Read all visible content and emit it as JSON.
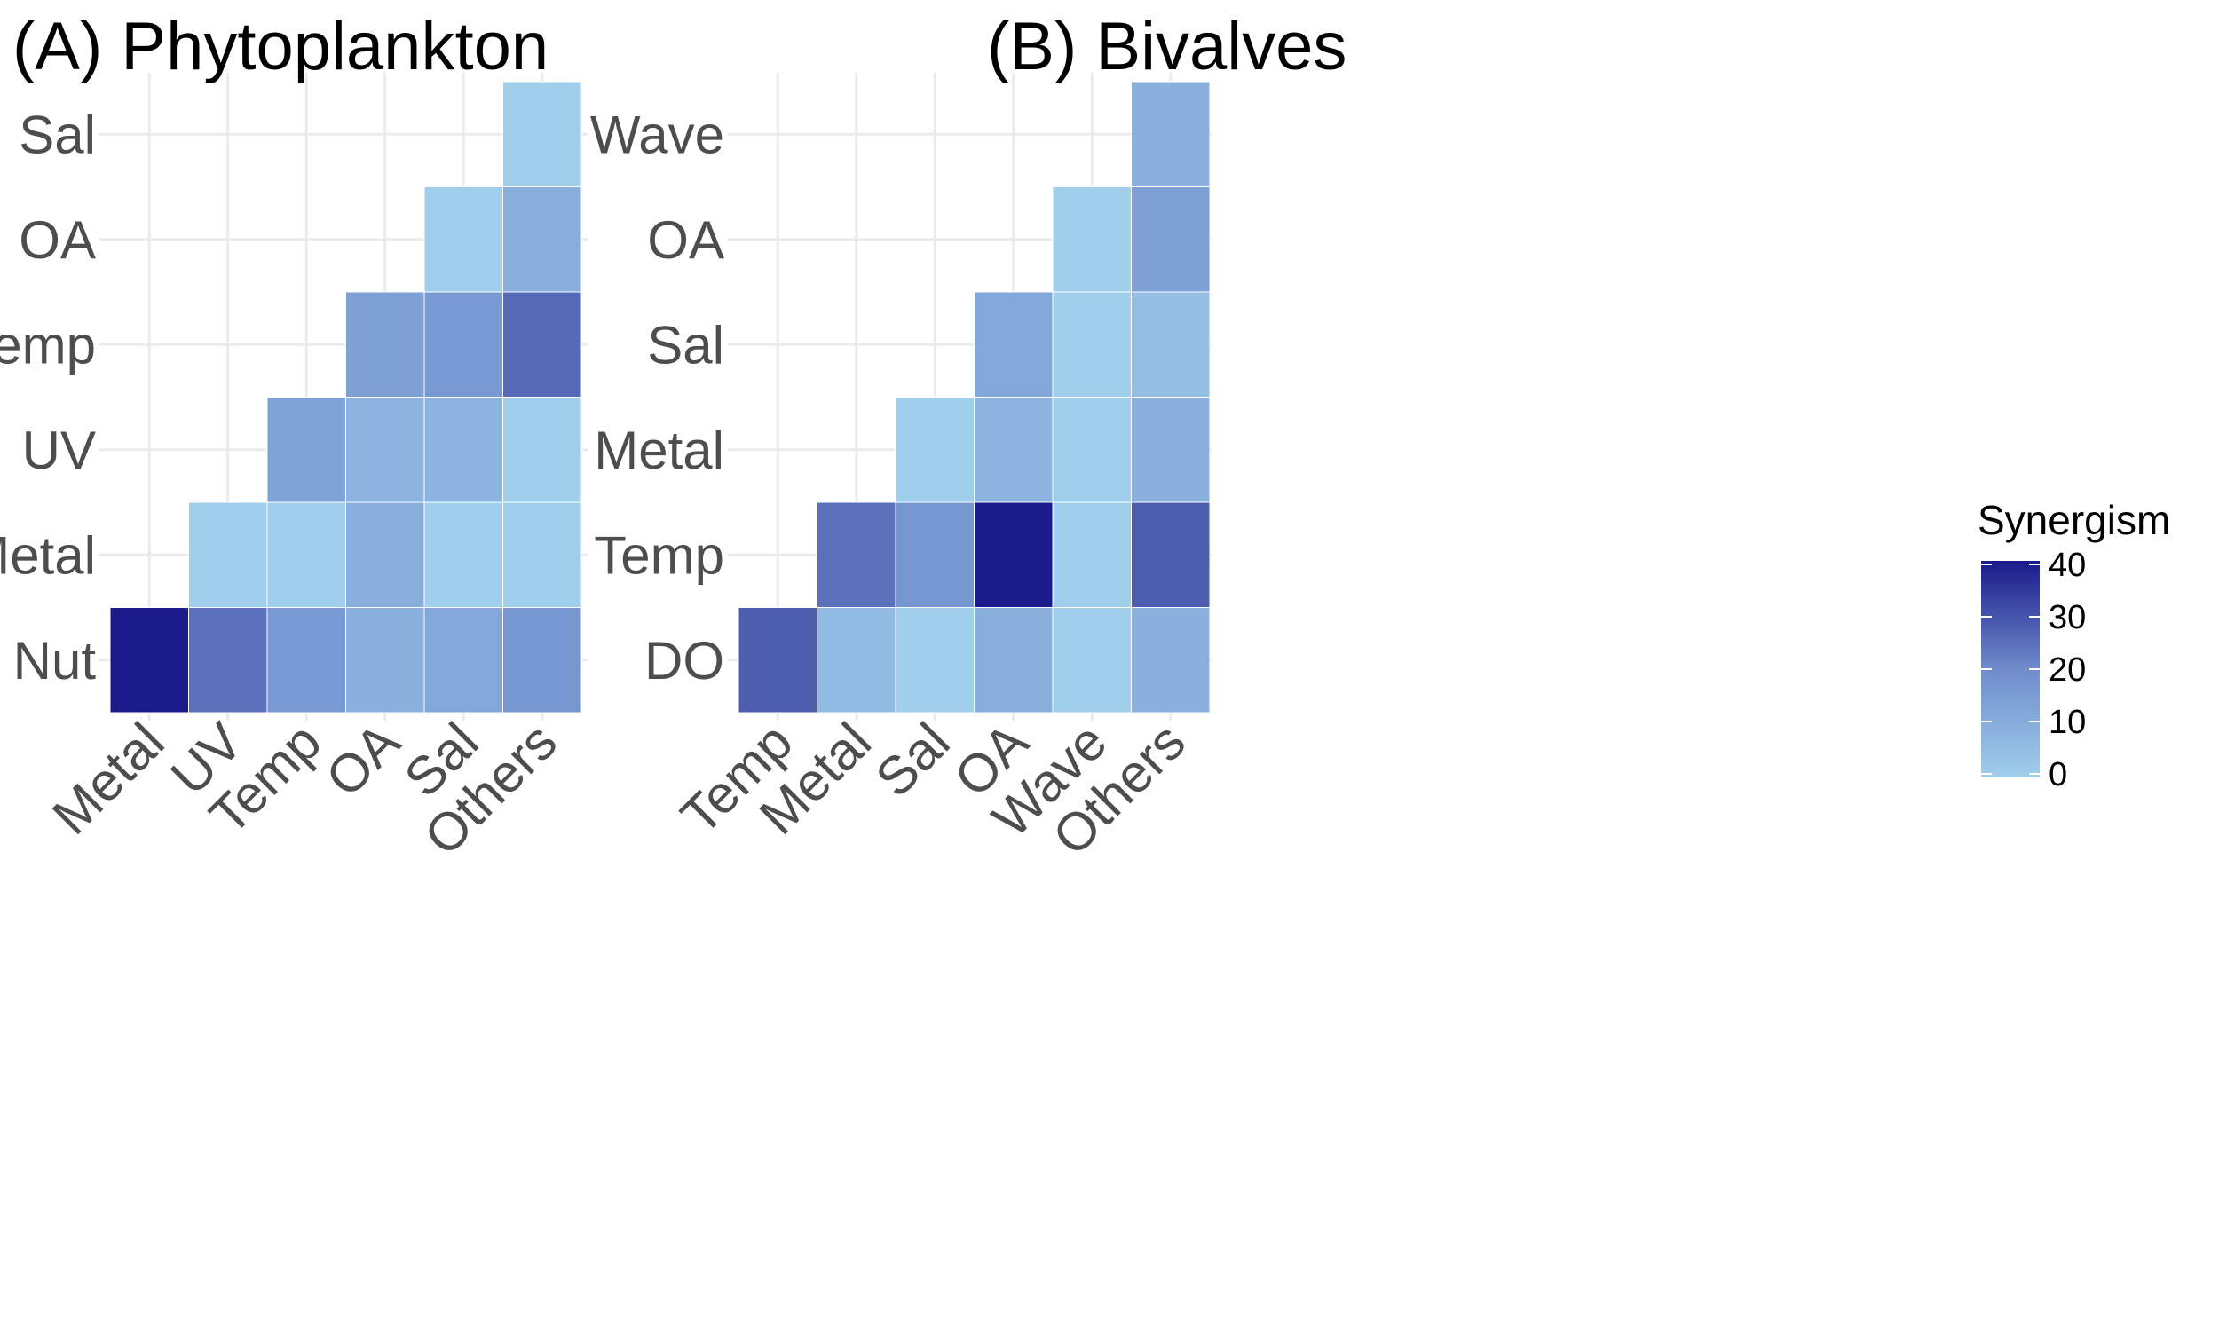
{
  "chart_data": [
    {
      "type": "heatmap",
      "title": "(A) Phytoplankton",
      "x_categories": [
        "Metal",
        "UV",
        "Temp",
        "OA",
        "Sal",
        "Others"
      ],
      "y_categories": [
        "Nut",
        "Metal",
        "UV",
        "Temp",
        "OA",
        "Sal"
      ],
      "cells": [
        {
          "x": "Metal",
          "y": "Nut",
          "value": 40
        },
        {
          "x": "UV",
          "y": "Nut",
          "value": 25
        },
        {
          "x": "Temp",
          "y": "Nut",
          "value": 16
        },
        {
          "x": "OA",
          "y": "Nut",
          "value": 9
        },
        {
          "x": "Sal",
          "y": "Nut",
          "value": 12
        },
        {
          "x": "Others",
          "y": "Nut",
          "value": 17
        },
        {
          "x": "UV",
          "y": "Metal",
          "value": 0
        },
        {
          "x": "Temp",
          "y": "Metal",
          "value": 0
        },
        {
          "x": "OA",
          "y": "Metal",
          "value": 10
        },
        {
          "x": "Sal",
          "y": "Metal",
          "value": 0
        },
        {
          "x": "Others",
          "y": "Metal",
          "value": 0
        },
        {
          "x": "Temp",
          "y": "UV",
          "value": 13
        },
        {
          "x": "OA",
          "y": "UV",
          "value": 8
        },
        {
          "x": "Sal",
          "y": "UV",
          "value": 8
        },
        {
          "x": "Others",
          "y": "UV",
          "value": 0
        },
        {
          "x": "OA",
          "y": "Temp",
          "value": 14
        },
        {
          "x": "Sal",
          "y": "Temp",
          "value": 16
        },
        {
          "x": "Others",
          "y": "Temp",
          "value": 26
        },
        {
          "x": "Sal",
          "y": "OA",
          "value": 0
        },
        {
          "x": "Others",
          "y": "OA",
          "value": 10
        },
        {
          "x": "Others",
          "y": "Sal",
          "value": 0
        }
      ]
    },
    {
      "type": "heatmap",
      "title": "(B) Bivalves",
      "x_categories": [
        "Temp",
        "Metal",
        "Sal",
        "OA",
        "Wave",
        "Others"
      ],
      "y_categories": [
        "DO",
        "Temp",
        "Metal",
        "Sal",
        "OA",
        "Wave"
      ],
      "cells": [
        {
          "x": "Temp",
          "y": "DO",
          "value": 28
        },
        {
          "x": "Metal",
          "y": "DO",
          "value": 6
        },
        {
          "x": "Sal",
          "y": "DO",
          "value": 0
        },
        {
          "x": "OA",
          "y": "DO",
          "value": 10
        },
        {
          "x": "Wave",
          "y": "DO",
          "value": 0
        },
        {
          "x": "Others",
          "y": "DO",
          "value": 9
        },
        {
          "x": "Metal",
          "y": "Temp",
          "value": 25
        },
        {
          "x": "Sal",
          "y": "Temp",
          "value": 17
        },
        {
          "x": "OA",
          "y": "Temp",
          "value": 40
        },
        {
          "x": "Wave",
          "y": "Temp",
          "value": 0
        },
        {
          "x": "Others",
          "y": "Temp",
          "value": 28
        },
        {
          "x": "Sal",
          "y": "Metal",
          "value": 0
        },
        {
          "x": "OA",
          "y": "Metal",
          "value": 8
        },
        {
          "x": "Wave",
          "y": "Metal",
          "value": 0
        },
        {
          "x": "Others",
          "y": "Metal",
          "value": 9
        },
        {
          "x": "OA",
          "y": "Sal",
          "value": 12
        },
        {
          "x": "Wave",
          "y": "Sal",
          "value": 0
        },
        {
          "x": "Others",
          "y": "Sal",
          "value": 5
        },
        {
          "x": "Wave",
          "y": "OA",
          "value": 0
        },
        {
          "x": "Others",
          "y": "OA",
          "value": 14
        },
        {
          "x": "Others",
          "y": "Wave",
          "value": 9
        }
      ]
    }
  ],
  "legend": {
    "title": "Synergism",
    "ticks": [
      40,
      30,
      20,
      10,
      0
    ],
    "min": 0,
    "max": 40,
    "colors": {
      "low": "#a0cfec",
      "mid": "#6f8ccb",
      "high": "#1a1a8a"
    }
  }
}
